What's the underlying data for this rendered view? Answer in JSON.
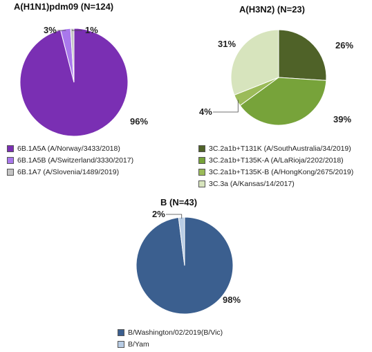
{
  "chart_data": [
    {
      "type": "pie",
      "title": "A(H1N1)pdm09 (N=124)",
      "slices": [
        {
          "label": "6B.1A5A (A/Norway/3433/2018)",
          "value": 96,
          "display": "96%",
          "color": "#7a2fb3"
        },
        {
          "label": "6B.1A5B (A/Switzerland/3330/2017)",
          "value": 3,
          "display": "3%",
          "color": "#a978ec"
        },
        {
          "label": "6B.1A7 (A/Slovenia/1489/2019)",
          "value": 1,
          "display": "1%",
          "color": "#c4c4c4"
        }
      ]
    },
    {
      "type": "pie",
      "title": "A(H3N2) (N=23)",
      "slices": [
        {
          "label": "3C.2a1b+T131K (A/SouthAustralia/34/2019)",
          "value": 26,
          "display": "26%",
          "color": "#4f6228"
        },
        {
          "label": "3C.2a1b+T135K-A (A/LaRioja/2202/2018)",
          "value": 39,
          "display": "39%",
          "color": "#77a33a"
        },
        {
          "label": "3C.2a1b+T135K-B (A/HongKong/2675/2019)",
          "value": 4,
          "display": "4%",
          "color": "#9bbb59"
        },
        {
          "label": "3C.3a (A/Kansas/14/2017)",
          "value": 31,
          "display": "31%",
          "color": "#d7e4bd"
        }
      ]
    },
    {
      "type": "pie",
      "title": "B (N=43)",
      "slices": [
        {
          "label": "B/Washington/02/2019(B/Vic)",
          "value": 98,
          "display": "98%",
          "color": "#3b5f8f"
        },
        {
          "label": "B/Yam",
          "value": 2,
          "display": "2%",
          "color": "#b8cce4"
        }
      ]
    }
  ]
}
